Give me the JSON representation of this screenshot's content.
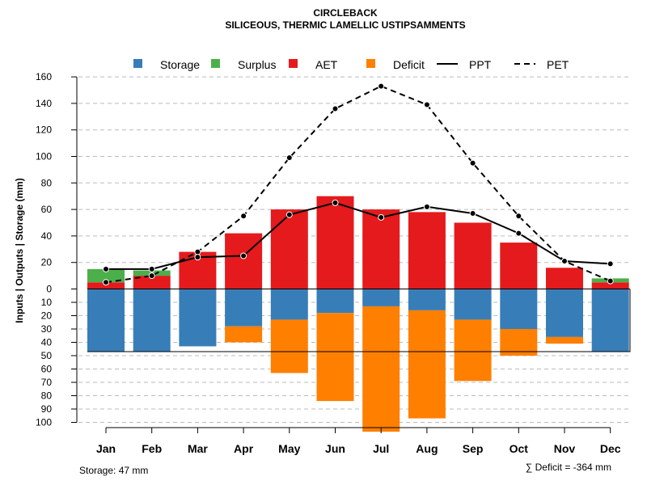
{
  "chart_data": {
    "type": "bar",
    "title": "CIRCLEBACK",
    "subtitle": "SILICEOUS, THERMIC LAMELLIC USTIPSAMMENTS",
    "ylabel": "Inputs | Outputs | Storage    (mm)",
    "xlabel": "",
    "ylim": [
      -100,
      160
    ],
    "grid": true,
    "legend_position": "top",
    "categories": [
      "Jan",
      "Feb",
      "Mar",
      "Apr",
      "May",
      "Jun",
      "Jul",
      "Aug",
      "Sep",
      "Oct",
      "Nov",
      "Dec"
    ],
    "upper_ticks": [
      "0",
      "20",
      "40",
      "60",
      "80",
      "100",
      "120",
      "140",
      "160"
    ],
    "lower_ticks": [
      "10",
      "20",
      "30",
      "40",
      "50",
      "60",
      "70",
      "80",
      "90",
      "100"
    ],
    "legend": {
      "storage": "Storage",
      "surplus": "Surplus",
      "aet": "AET",
      "deficit": "Deficit",
      "ppt": "PPT",
      "pet": "PET"
    },
    "colors": {
      "storage": "#377EB8",
      "surplus": "#4DAF4A",
      "aet": "#E41A1C",
      "deficit": "#FF7F00",
      "line": "#000000",
      "grid": "#bbbbbb"
    },
    "series": [
      {
        "name": "AET",
        "values": [
          5,
          10,
          28,
          42,
          60,
          70,
          60,
          58,
          50,
          35,
          16,
          5
        ]
      },
      {
        "name": "Surplus",
        "values": [
          10,
          4,
          0,
          0,
          0,
          0,
          0,
          0,
          0,
          0,
          0,
          3
        ]
      },
      {
        "name": "Storage",
        "values": [
          47,
          47,
          43,
          28,
          23,
          18,
          13,
          16,
          23,
          30,
          36,
          47
        ]
      },
      {
        "name": "Deficit",
        "values": [
          0,
          0,
          0,
          12,
          40,
          66,
          94,
          81,
          46,
          20,
          5,
          0
        ]
      },
      {
        "name": "PPT",
        "values": [
          15,
          15,
          24,
          25,
          56,
          65,
          54,
          62,
          57,
          42,
          21,
          19
        ]
      },
      {
        "name": "PET",
        "values": [
          5,
          10,
          28,
          55,
          99,
          136,
          153,
          139,
          95,
          55,
          21,
          6
        ]
      }
    ],
    "storage_note": "Storage: 47 mm",
    "deficit_note": "∑ Deficit = -364 mm"
  }
}
